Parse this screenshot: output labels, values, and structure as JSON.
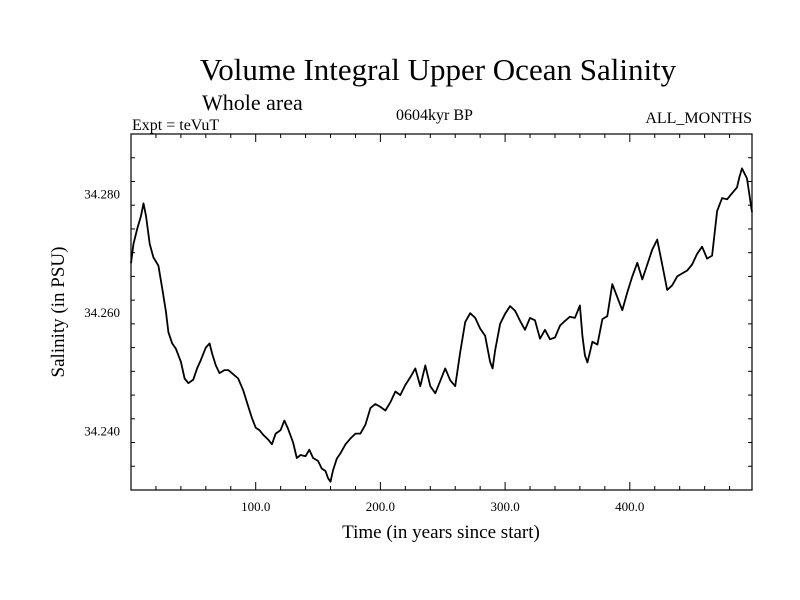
{
  "header": {
    "title": "Volume Integral Upper Ocean Salinity",
    "subtitle": "Whole area",
    "experiment": "Expt = teVuT",
    "period": "0604kyr BP",
    "months": "ALL_MONTHS"
  },
  "chart_data": {
    "type": "line",
    "title": "Volume Integral Upper Ocean Salinity",
    "xlabel": "Time (in years since start)",
    "ylabel": "Salinity (in PSU)",
    "xlim": [
      0,
      498
    ],
    "ylim": [
      34.23,
      34.29
    ],
    "xticks": [
      100,
      200,
      300,
      400
    ],
    "xtick_labels": [
      "100.0",
      "200.0",
      "300.0",
      "400.0"
    ],
    "yticks": [
      34.24,
      34.26,
      34.28
    ],
    "ytick_labels": [
      "34.240",
      "34.260",
      "34.280"
    ],
    "grid": false,
    "series": [
      {
        "x": [
          0,
          2,
          5,
          8,
          10,
          12,
          15,
          18,
          22,
          25,
          28,
          30,
          33,
          36,
          40,
          43,
          46,
          50,
          53,
          56,
          60,
          63,
          65,
          68,
          71,
          75,
          78,
          82,
          86,
          90,
          94,
          97,
          100,
          103,
          106,
          110,
          113,
          116,
          120,
          123,
          126,
          130,
          133,
          136,
          140,
          143,
          146,
          150,
          153,
          156,
          158,
          160,
          162,
          165,
          168,
          172,
          176,
          180,
          184,
          188,
          192,
          196,
          200,
          204,
          208,
          212,
          216,
          220,
          224,
          228,
          232,
          236,
          240,
          244,
          248,
          252,
          256,
          260,
          264,
          268,
          272,
          276,
          280,
          284,
          288,
          290,
          292,
          296,
          300,
          304,
          308,
          312,
          316,
          320,
          324,
          328,
          332,
          336,
          340,
          344,
          348,
          352,
          356,
          360,
          362,
          364,
          366,
          368,
          370,
          374,
          378,
          382,
          386,
          390,
          394,
          398,
          402,
          406,
          410,
          414,
          418,
          422,
          426,
          430,
          434,
          438,
          442,
          446,
          450,
          454,
          458,
          462,
          466,
          470,
          474,
          478,
          482,
          486,
          488,
          490,
          494,
          498
        ],
        "values": [
          34.2682,
          34.2715,
          34.274,
          34.2762,
          34.2783,
          34.2762,
          34.2715,
          34.2692,
          34.2678,
          34.264,
          34.2601,
          34.2566,
          34.2547,
          34.2538,
          34.2516,
          34.2488,
          34.248,
          34.2486,
          34.2505,
          34.2519,
          34.254,
          34.2547,
          34.253,
          34.251,
          34.2497,
          34.2502,
          34.2502,
          34.2495,
          34.2488,
          34.2468,
          34.2441,
          34.2421,
          34.2405,
          34.2401,
          34.2393,
          34.2385,
          34.2377,
          34.2395,
          34.2401,
          34.2417,
          34.2403,
          34.238,
          34.2354,
          34.2359,
          34.2357,
          34.2368,
          34.2354,
          34.2349,
          34.2336,
          34.2332,
          34.232,
          34.2314,
          34.2333,
          34.2353,
          34.2362,
          34.2377,
          34.2387,
          34.2395,
          34.2395,
          34.241,
          34.2438,
          34.2445,
          34.244,
          34.2434,
          34.2448,
          34.2466,
          34.246,
          34.2477,
          34.249,
          34.2505,
          34.2475,
          34.251,
          34.2475,
          34.2463,
          34.2484,
          34.2505,
          34.2485,
          34.2475,
          34.2532,
          34.2583,
          34.2598,
          34.259,
          34.2572,
          34.256,
          34.2516,
          34.2505,
          34.2535,
          34.258,
          34.2597,
          34.261,
          34.2602,
          34.2585,
          34.257,
          34.259,
          34.2586,
          34.2555,
          34.257,
          34.2554,
          34.2557,
          34.2577,
          34.2585,
          34.2592,
          34.259,
          34.2611,
          34.256,
          34.2527,
          34.2515,
          34.2532,
          34.255,
          34.2545,
          34.2588,
          34.2593,
          34.2647,
          34.2625,
          34.2603,
          34.2633,
          34.266,
          34.2683,
          34.2655,
          34.268,
          34.2705,
          34.2722,
          34.268,
          34.2637,
          34.2645,
          34.266,
          34.2665,
          34.267,
          34.268,
          34.2698,
          34.271,
          34.269,
          34.2695,
          34.277,
          34.2792,
          34.279,
          34.28,
          34.281,
          34.2828,
          34.2842,
          34.2825,
          34.2768
        ]
      }
    ]
  }
}
